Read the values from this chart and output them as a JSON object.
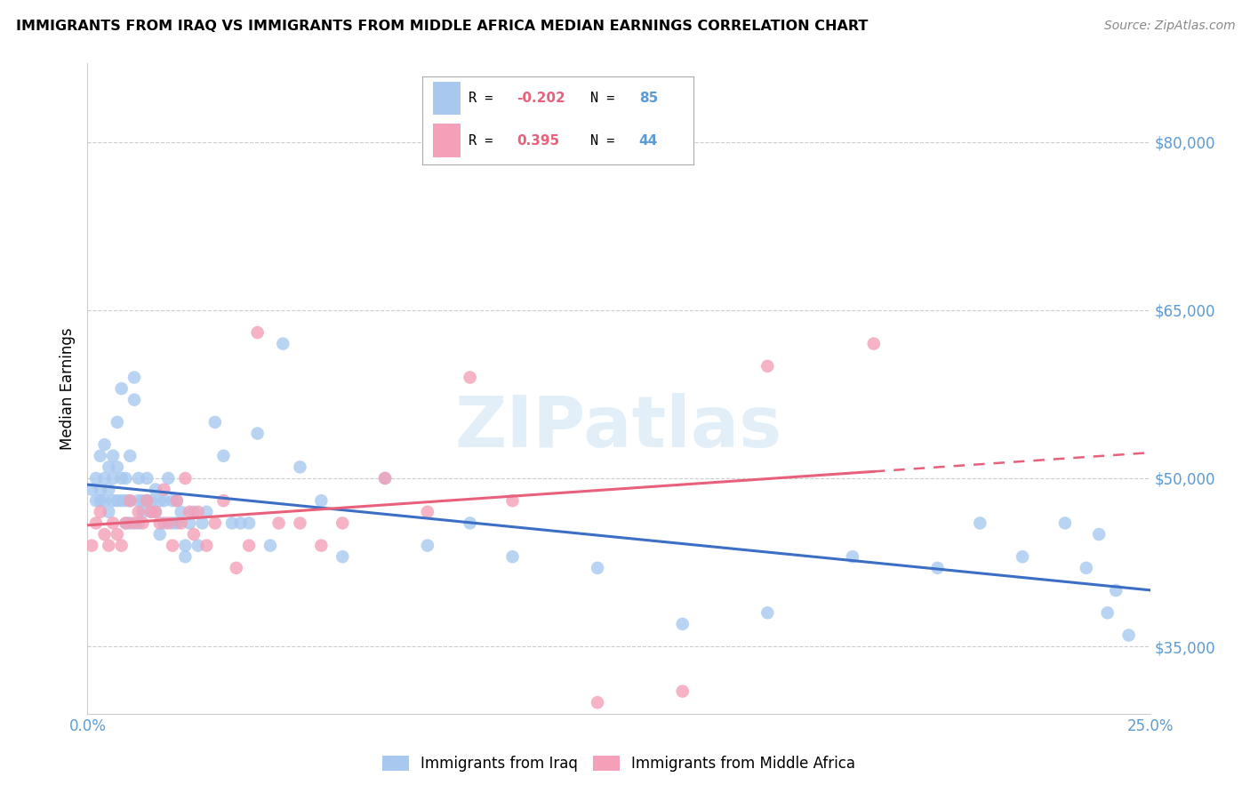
{
  "title": "IMMIGRANTS FROM IRAQ VS IMMIGRANTS FROM MIDDLE AFRICA MEDIAN EARNINGS CORRELATION CHART",
  "source": "Source: ZipAtlas.com",
  "ylabel": "Median Earnings",
  "xlim": [
    0.0,
    0.25
  ],
  "ylim": [
    29000,
    87000
  ],
  "yticks": [
    35000,
    50000,
    65000,
    80000
  ],
  "ytick_labels": [
    "$35,000",
    "$50,000",
    "$65,000",
    "$80,000"
  ],
  "xticks": [
    0.0,
    0.05,
    0.1,
    0.15,
    0.2,
    0.25
  ],
  "xtick_labels": [
    "0.0%",
    "",
    "",
    "",
    "",
    "25.0%"
  ],
  "legend1_label": "Immigrants from Iraq",
  "legend2_label": "Immigrants from Middle Africa",
  "R1": -0.202,
  "N1": 85,
  "R2": 0.395,
  "N2": 44,
  "color1": "#A8C8F0",
  "color2": "#F4A0B8",
  "line_color1": "#3B6EC5",
  "line_color2": "#E8607A",
  "axis_color": "#5B9BD5",
  "background_color": "#FFFFFF",
  "watermark": "ZIPatlas",
  "iraq_x": [
    0.001,
    0.002,
    0.002,
    0.003,
    0.003,
    0.003,
    0.004,
    0.004,
    0.004,
    0.005,
    0.005,
    0.005,
    0.006,
    0.006,
    0.006,
    0.007,
    0.007,
    0.007,
    0.008,
    0.008,
    0.008,
    0.009,
    0.009,
    0.009,
    0.01,
    0.01,
    0.01,
    0.011,
    0.011,
    0.012,
    0.012,
    0.012,
    0.013,
    0.013,
    0.014,
    0.014,
    0.015,
    0.015,
    0.016,
    0.016,
    0.017,
    0.017,
    0.018,
    0.018,
    0.019,
    0.02,
    0.02,
    0.021,
    0.021,
    0.022,
    0.023,
    0.023,
    0.024,
    0.025,
    0.026,
    0.027,
    0.028,
    0.03,
    0.032,
    0.034,
    0.036,
    0.038,
    0.04,
    0.043,
    0.046,
    0.05,
    0.055,
    0.06,
    0.07,
    0.08,
    0.09,
    0.1,
    0.12,
    0.14,
    0.16,
    0.18,
    0.2,
    0.21,
    0.22,
    0.23,
    0.235,
    0.238,
    0.24,
    0.242,
    0.245
  ],
  "iraq_y": [
    49000,
    50000,
    48000,
    52000,
    49000,
    48000,
    50000,
    53000,
    48000,
    51000,
    49000,
    47000,
    50000,
    52000,
    48000,
    55000,
    51000,
    48000,
    58000,
    50000,
    48000,
    46000,
    50000,
    48000,
    52000,
    48000,
    46000,
    59000,
    57000,
    48000,
    50000,
    46000,
    48000,
    47000,
    50000,
    48000,
    48000,
    47000,
    47000,
    49000,
    45000,
    48000,
    46000,
    48000,
    50000,
    46000,
    48000,
    46000,
    48000,
    47000,
    43000,
    44000,
    46000,
    47000,
    44000,
    46000,
    47000,
    55000,
    52000,
    46000,
    46000,
    46000,
    54000,
    44000,
    62000,
    51000,
    48000,
    43000,
    50000,
    44000,
    46000,
    43000,
    42000,
    37000,
    38000,
    43000,
    42000,
    46000,
    43000,
    46000,
    42000,
    45000,
    38000,
    40000,
    36000
  ],
  "africa_x": [
    0.001,
    0.002,
    0.003,
    0.004,
    0.005,
    0.006,
    0.007,
    0.008,
    0.009,
    0.01,
    0.011,
    0.012,
    0.013,
    0.014,
    0.015,
    0.016,
    0.017,
    0.018,
    0.019,
    0.02,
    0.021,
    0.022,
    0.023,
    0.024,
    0.025,
    0.026,
    0.028,
    0.03,
    0.032,
    0.035,
    0.038,
    0.04,
    0.045,
    0.05,
    0.055,
    0.06,
    0.07,
    0.08,
    0.09,
    0.1,
    0.12,
    0.14,
    0.16,
    0.185
  ],
  "africa_y": [
    44000,
    46000,
    47000,
    45000,
    44000,
    46000,
    45000,
    44000,
    46000,
    48000,
    46000,
    47000,
    46000,
    48000,
    47000,
    47000,
    46000,
    49000,
    46000,
    44000,
    48000,
    46000,
    50000,
    47000,
    45000,
    47000,
    44000,
    46000,
    48000,
    42000,
    44000,
    63000,
    46000,
    46000,
    44000,
    46000,
    50000,
    47000,
    59000,
    48000,
    30000,
    31000,
    60000,
    62000
  ]
}
